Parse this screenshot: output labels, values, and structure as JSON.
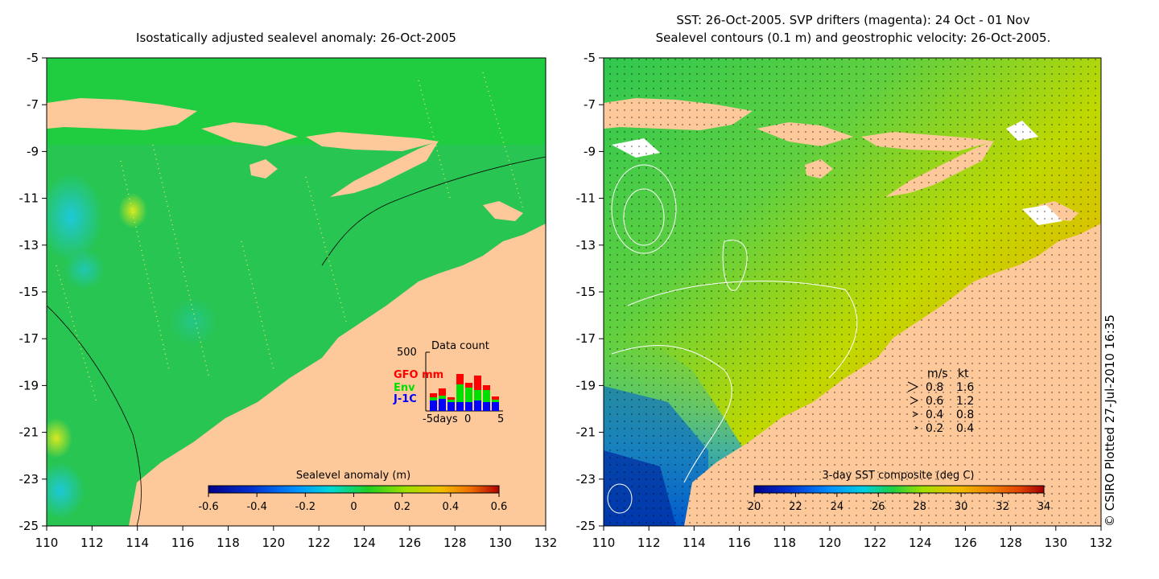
{
  "left_panel": {
    "title": "Isostatically adjusted sealevel anomaly: 26-Oct-2005",
    "colorbar_label": "Sealevel anomaly (m)",
    "colorbar_ticks": [
      "-0.6",
      "-0.4",
      "-0.2",
      "0",
      "0.2",
      "0.4",
      "0.6"
    ],
    "colorbar_colors": [
      "#00008b",
      "#0030d0",
      "#0090ff",
      "#00d8d8",
      "#20d020",
      "#a0e000",
      "#f0c000",
      "#f07000",
      "#b00000"
    ],
    "inset": {
      "title": "Data count",
      "ymax_label": "500",
      "x_tick_labels": [
        "-5days",
        "0",
        "5"
      ],
      "legend": [
        {
          "label": "GFO mm",
          "color": "#ff0000"
        },
        {
          "label": "Env",
          "color": "#00e000"
        },
        {
          "label": "J-1C",
          "color": "#0000ff"
        }
      ]
    }
  },
  "right_panel": {
    "title_line1": "SST: 26-Oct-2005. SVP drifters (magenta): 24 Oct - 01 Nov",
    "title_line2": "Sealevel contours (0.1 m) and geostrophic velocity: 26-Oct-2005.",
    "colorbar_label": "3-day SST composite (deg C)",
    "colorbar_ticks": [
      "20",
      "22",
      "24",
      "26",
      "28",
      "30",
      "32",
      "34"
    ],
    "colorbar_colors": [
      "#00008b",
      "#0030d0",
      "#0090ff",
      "#00d0e0",
      "#20d040",
      "#a0e000",
      "#f0c000",
      "#f08000",
      "#e04000",
      "#a00000"
    ],
    "speed_legend": {
      "header_ms": "m/s",
      "header_kt": "kt",
      "rows": [
        {
          "ms": "0.8",
          "kt": "1.6"
        },
        {
          "ms": "0.6",
          "kt": "1.2"
        },
        {
          "ms": "0.4",
          "kt": "0.8"
        },
        {
          "ms": "0.2",
          "kt": "0.4"
        }
      ]
    }
  },
  "axes": {
    "y_tick_labels": [
      "-5",
      "-7",
      "-9",
      "-11",
      "-13",
      "-15",
      "-17",
      "-19",
      "-21",
      "-23",
      "-25"
    ],
    "x_tick_labels": [
      "110",
      "112",
      "114",
      "116",
      "118",
      "120",
      "122",
      "124",
      "126",
      "128",
      "130",
      "132"
    ]
  },
  "credit": "© CSIRO Plotted 27-Jul-2010 16:35",
  "colors": {
    "land": "#fdc99a",
    "sea_left": "#22cc44",
    "sea_right": "#90d820"
  },
  "chart_data": [
    {
      "type": "heatmap",
      "title": "Isostatically adjusted sealevel anomaly: 26-Oct-2005",
      "xlim": [
        110,
        132
      ],
      "ylim": [
        -25,
        -5
      ],
      "colorbar": {
        "label": "Sealevel anomaly (m)",
        "range": [
          -0.6,
          0.6
        ]
      }
    },
    {
      "type": "bar",
      "title": "Data count",
      "x": [
        -5,
        5
      ],
      "ylim": [
        0,
        500
      ],
      "series": [
        {
          "name": "GFO mm"
        },
        {
          "name": "Env"
        },
        {
          "name": "J-1C"
        }
      ]
    },
    {
      "type": "heatmap",
      "title": "SST: 26-Oct-2005. SVP drifters (magenta): 24 Oct - 01 Nov",
      "xlim": [
        110,
        132
      ],
      "ylim": [
        -25,
        -5
      ],
      "colorbar": {
        "label": "3-day SST composite (deg C)",
        "range": [
          20,
          34
        ]
      }
    }
  ]
}
